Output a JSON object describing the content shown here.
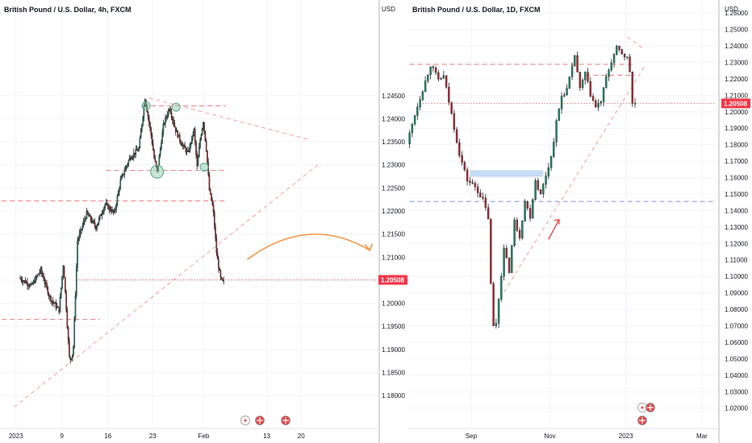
{
  "chart_data": [
    {
      "type": "candlestick",
      "title": "British Pound / U.S. Dollar, 4h, FXCM",
      "timeframe": "4h",
      "y_unit": "USD",
      "ylim": [
        1.1775,
        1.2625
      ],
      "yticks": [
        1.18,
        1.185,
        1.19,
        1.195,
        1.2,
        1.205,
        1.21,
        1.215,
        1.22,
        1.225,
        1.23,
        1.235,
        1.24,
        1.245
      ],
      "x_ticks": [
        "2023",
        "9",
        "16",
        "23",
        "Feb",
        "13",
        "20"
      ],
      "last_price_label": "1.20508",
      "last_price": 1.20508,
      "grid": true,
      "path": [
        {
          "t": 0,
          "p": 1.2055
        },
        {
          "t": 2,
          "p": 1.2038
        },
        {
          "t": 3.5,
          "p": 1.2072
        },
        {
          "t": 5,
          "p": 1.2012
        },
        {
          "t": 6.5,
          "p": 1.1985
        },
        {
          "t": 7.2,
          "p": 1.2088
        },
        {
          "t": 8.2,
          "p": 1.1875
        },
        {
          "t": 8.8,
          "p": 1.1895
        },
        {
          "t": 9.5,
          "p": 1.2135
        },
        {
          "t": 11,
          "p": 1.2195
        },
        {
          "t": 12.5,
          "p": 1.2165
        },
        {
          "t": 14,
          "p": 1.2215
        },
        {
          "t": 15.5,
          "p": 1.2195
        },
        {
          "t": 16.5,
          "p": 1.2265
        },
        {
          "t": 18,
          "p": 1.2315
        },
        {
          "t": 19.5,
          "p": 1.2335
        },
        {
          "t": 20.5,
          "p": 1.2445
        },
        {
          "t": 21.5,
          "p": 1.2365
        },
        {
          "t": 22,
          "p": 1.2315
        },
        {
          "t": 22.5,
          "p": 1.2285
        },
        {
          "t": 23.5,
          "p": 1.2385
        },
        {
          "t": 24.5,
          "p": 1.2425
        },
        {
          "t": 25.5,
          "p": 1.2375
        },
        {
          "t": 26.5,
          "p": 1.2345
        },
        {
          "t": 27.5,
          "p": 1.2325
        },
        {
          "t": 28.5,
          "p": 1.2375
        },
        {
          "t": 29,
          "p": 1.2295
        },
        {
          "t": 29.5,
          "p": 1.2355
        },
        {
          "t": 30,
          "p": 1.2395
        },
        {
          "t": 30.5,
          "p": 1.2335
        },
        {
          "t": 31,
          "p": 1.2245
        },
        {
          "t": 31.6,
          "p": 1.2205
        },
        {
          "t": 32.2,
          "p": 1.2105
        },
        {
          "t": 32.8,
          "p": 1.2055
        },
        {
          "t": 33.1,
          "p": 1.2046
        }
      ],
      "levels": [
        {
          "price": 1.2428,
          "style": "dashed",
          "color": "#f07b7b",
          "t_from": 20,
          "t_to": 33.5
        },
        {
          "price": 1.2288,
          "style": "dashed",
          "color": "#f07b7b",
          "t_from": 14,
          "t_to": 33.5
        },
        {
          "price": 1.2222,
          "style": "dashed",
          "color": "#f07b7b",
          "t_from": -3,
          "t_to": 33.5
        },
        {
          "price": 1.1965,
          "style": "dashed",
          "color": "#f07b7b",
          "t_from": -3,
          "t_to": 13
        },
        {
          "price": 1.20508,
          "style": "dotted",
          "color": "#f07b7b",
          "t_from": 9,
          "t_to": 62
        }
      ],
      "trendlines": [
        {
          "t1": 21,
          "p1": 1.2445,
          "t2": 47,
          "p2": 1.2355,
          "style": "dashed",
          "color": "#f0a0a0"
        },
        {
          "t1": -1,
          "p1": 1.1775,
          "t2": 49,
          "p2": 1.2305,
          "style": "dashed",
          "color": "#f0a0a0"
        }
      ],
      "markers": [
        {
          "t": 20.5,
          "p": 1.2428,
          "r": 5
        },
        {
          "t": 25.4,
          "p": 1.2425,
          "r": 5
        },
        {
          "t": 22.3,
          "p": 1.2285,
          "r": 8
        },
        {
          "t": 30,
          "p": 1.2295,
          "r": 5
        }
      ],
      "arrow": {
        "color": "#f5923e",
        "t_start": 37,
        "p_start": 1.2095,
        "t_end": 57,
        "p_end": 1.2115
      },
      "legend_icons": [
        "lightning-icon",
        "us-flag-icon",
        "uk-flag-icon"
      ]
    },
    {
      "type": "candlestick",
      "title": "British Pound / U.S. Dollar, 1D, FXCM",
      "timeframe": "1D",
      "y_unit": "USD",
      "ylim": [
        1.013,
        1.263
      ],
      "yticks": [
        1.02,
        1.03,
        1.04,
        1.05,
        1.06,
        1.07,
        1.08,
        1.09,
        1.1,
        1.11,
        1.12,
        1.13,
        1.14,
        1.15,
        1.16,
        1.17,
        1.18,
        1.19,
        1.2,
        1.21,
        1.22,
        1.23,
        1.24,
        1.25,
        1.26
      ],
      "x_ticks": [
        "Sep",
        "Nov",
        "2023",
        "Mar"
      ],
      "last_price_label": "1.20508",
      "last_price": 1.20508,
      "grid": true,
      "path": [
        {
          "t": 0,
          "p": 1.1805
        },
        {
          "t": 3,
          "p": 1.1985
        },
        {
          "t": 7,
          "p": 1.2185
        },
        {
          "t": 9,
          "p": 1.2285
        },
        {
          "t": 12,
          "p": 1.2195
        },
        {
          "t": 14,
          "p": 1.2215
        },
        {
          "t": 17,
          "p": 1.1985
        },
        {
          "t": 20,
          "p": 1.1745
        },
        {
          "t": 23,
          "p": 1.1585
        },
        {
          "t": 26,
          "p": 1.1545
        },
        {
          "t": 29,
          "p": 1.1465
        },
        {
          "t": 31,
          "p": 1.1355
        },
        {
          "t": 32.5,
          "p": 1.0745
        },
        {
          "t": 33.5,
          "p": 1.0645
        },
        {
          "t": 35,
          "p": 1.0865
        },
        {
          "t": 37,
          "p": 1.1165
        },
        {
          "t": 39,
          "p": 1.1035
        },
        {
          "t": 41,
          "p": 1.1335
        },
        {
          "t": 43,
          "p": 1.1245
        },
        {
          "t": 45,
          "p": 1.1455
        },
        {
          "t": 47,
          "p": 1.1365
        },
        {
          "t": 49,
          "p": 1.1585
        },
        {
          "t": 51,
          "p": 1.1495
        },
        {
          "t": 53,
          "p": 1.1615
        },
        {
          "t": 55,
          "p": 1.1725
        },
        {
          "t": 57,
          "p": 1.1935
        },
        {
          "t": 59,
          "p": 1.2095
        },
        {
          "t": 61,
          "p": 1.2135
        },
        {
          "t": 63,
          "p": 1.2265
        },
        {
          "t": 64,
          "p": 1.2345
        },
        {
          "t": 66,
          "p": 1.2135
        },
        {
          "t": 68,
          "p": 1.2235
        },
        {
          "t": 70,
          "p": 1.2105
        },
        {
          "t": 72,
          "p": 1.2025
        },
        {
          "t": 74,
          "p": 1.2065
        },
        {
          "t": 76,
          "p": 1.2205
        },
        {
          "t": 78,
          "p": 1.2305
        },
        {
          "t": 80,
          "p": 1.2385
        },
        {
          "t": 82,
          "p": 1.2355
        },
        {
          "t": 84,
          "p": 1.2325
        },
        {
          "t": 85,
          "p": 1.2245
        },
        {
          "t": 85.5,
          "p": 1.2051
        }
      ],
      "levels": [
        {
          "price": 1.2288,
          "style": "dashed",
          "color": "#f07b7b",
          "t_from": 0,
          "t_to": 86
        },
        {
          "price": 1.2222,
          "style": "dashed",
          "color": "#f07b7b",
          "t_from": 67,
          "t_to": 86
        },
        {
          "price": 1.20508,
          "style": "dotted",
          "color": "#f07b7b",
          "t_from": 5,
          "t_to": 117
        },
        {
          "price": 1.1455,
          "style": "dashed",
          "color": "#7b92e8",
          "t_from": 0,
          "t_to": 117
        }
      ],
      "zones": [
        {
          "price_low": 1.1605,
          "price_high": 1.1645,
          "t_from": 23,
          "t_to": 51,
          "color": "#bcd6f1"
        }
      ],
      "trendlines": [
        {
          "t1": 36,
          "p1": 1.0905,
          "t2": 90,
          "p2": 1.2285,
          "style": "dashed",
          "color": "#f0a0a0"
        },
        {
          "t1": 83,
          "p1": 1.2455,
          "t2": 89,
          "p2": 1.2385,
          "style": "dashed",
          "color": "#f0a0a0"
        }
      ],
      "arrow": {
        "color": "#ef3b3b",
        "t_start": 53,
        "p_start": 1.1225,
        "t_end": 57,
        "p_end": 1.1345
      },
      "legend_icons": [
        "lightning-icon",
        "uk-flag-icon",
        "us-flag-icon"
      ]
    }
  ]
}
